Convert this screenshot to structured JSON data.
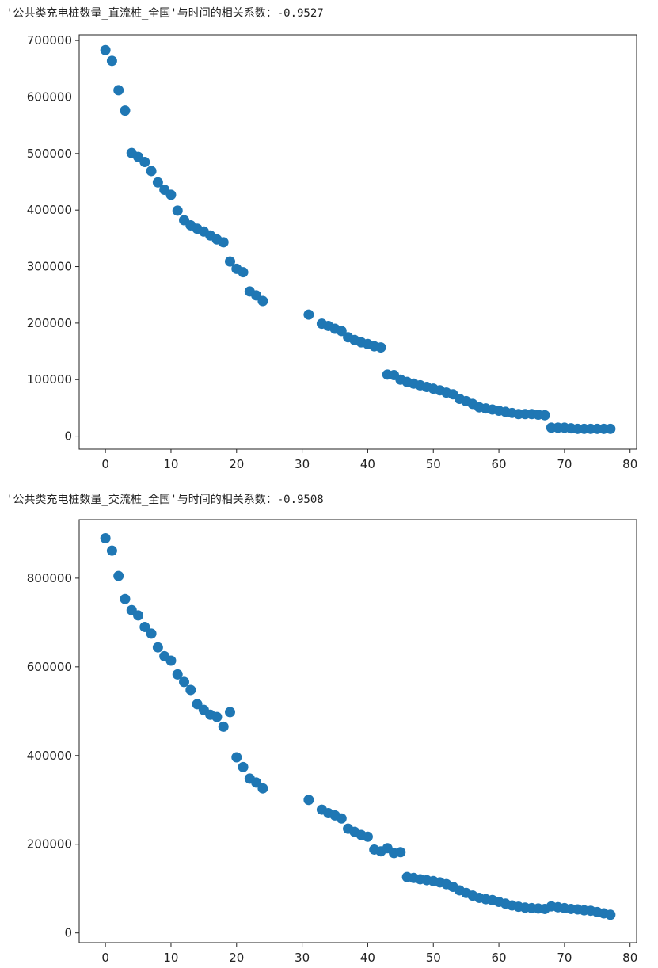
{
  "outputs": [
    {
      "text": "'公共类充电桩数量_直流桩_全国'与时间的相关系数：-0.9527"
    },
    {
      "text": "'公共类充电桩数量_交流桩_全国'与时间的相关系数：-0.9508"
    }
  ],
  "chart_data": [
    {
      "type": "scatter",
      "title": "",
      "xlabel": "",
      "ylabel": "",
      "xlim": [
        -4,
        81
      ],
      "ylim": [
        -23000,
        710000
      ],
      "xticks": [
        0,
        10,
        20,
        30,
        40,
        50,
        60,
        70,
        80
      ],
      "yticks": [
        0,
        100000,
        200000,
        300000,
        400000,
        500000,
        600000,
        700000
      ],
      "grid": false,
      "color": "#1f77b4",
      "series": [
        {
          "points": [
            [
              0,
              683000
            ],
            [
              1,
              664000
            ],
            [
              2,
              612000
            ],
            [
              3,
              576000
            ],
            [
              4,
              501000
            ],
            [
              5,
              494000
            ],
            [
              6,
              485000
            ],
            [
              7,
              469000
            ],
            [
              8,
              449000
            ],
            [
              9,
              436000
            ],
            [
              10,
              427000
            ],
            [
              11,
              399000
            ],
            [
              12,
              382000
            ],
            [
              13,
              373000
            ],
            [
              14,
              367000
            ],
            [
              15,
              362000
            ],
            [
              16,
              355000
            ],
            [
              17,
              348000
            ],
            [
              18,
              343000
            ],
            [
              19,
              309000
            ],
            [
              20,
              296000
            ],
            [
              21,
              290000
            ],
            [
              22,
              256000
            ],
            [
              23,
              249000
            ],
            [
              24,
              239000
            ],
            [
              31,
              215000
            ],
            [
              33,
              199000
            ],
            [
              34,
              195000
            ],
            [
              35,
              190000
            ],
            [
              36,
              186000
            ],
            [
              37,
              175000
            ],
            [
              38,
              170000
            ],
            [
              39,
              166000
            ],
            [
              40,
              163000
            ],
            [
              41,
              159000
            ],
            [
              42,
              157000
            ],
            [
              43,
              109000
            ],
            [
              44,
              108000
            ],
            [
              45,
              100000
            ],
            [
              46,
              96000
            ],
            [
              47,
              93000
            ],
            [
              48,
              90000
            ],
            [
              49,
              87000
            ],
            [
              50,
              84000
            ],
            [
              51,
              81000
            ],
            [
              52,
              77000
            ],
            [
              53,
              74000
            ],
            [
              54,
              66000
            ],
            [
              55,
              62000
            ],
            [
              56,
              57000
            ],
            [
              57,
              51000
            ],
            [
              58,
              49000
            ],
            [
              59,
              47000
            ],
            [
              60,
              45000
            ],
            [
              61,
              43000
            ],
            [
              62,
              41000
            ],
            [
              63,
              39000
            ],
            [
              64,
              39000
            ],
            [
              65,
              39000
            ],
            [
              66,
              38000
            ],
            [
              67,
              37000
            ],
            [
              68,
              15000
            ],
            [
              69,
              15000
            ],
            [
              70,
              15000
            ],
            [
              71,
              14000
            ],
            [
              72,
              13000
            ],
            [
              73,
              13000
            ],
            [
              74,
              13000
            ],
            [
              75,
              13000
            ],
            [
              76,
              13000
            ],
            [
              77,
              13000
            ]
          ]
        }
      ]
    },
    {
      "type": "scatter",
      "title": "",
      "xlabel": "",
      "ylabel": "",
      "xlim": [
        -4,
        81
      ],
      "ylim": [
        -22000,
        932000
      ],
      "xticks": [
        0,
        10,
        20,
        30,
        40,
        50,
        60,
        70,
        80
      ],
      "yticks": [
        0,
        200000,
        400000,
        600000,
        800000
      ],
      "grid": false,
      "color": "#1f77b4",
      "series": [
        {
          "points": [
            [
              0,
              890000
            ],
            [
              1,
              862000
            ],
            [
              2,
              805000
            ],
            [
              3,
              753000
            ],
            [
              4,
              728000
            ],
            [
              5,
              716000
            ],
            [
              6,
              690000
            ],
            [
              7,
              675000
            ],
            [
              8,
              644000
            ],
            [
              9,
              624000
            ],
            [
              10,
              614000
            ],
            [
              11,
              583000
            ],
            [
              12,
              566000
            ],
            [
              13,
              548000
            ],
            [
              14,
              516000
            ],
            [
              15,
              503000
            ],
            [
              16,
              492000
            ],
            [
              17,
              487000
            ],
            [
              18,
              465000
            ],
            [
              19,
              498000
            ],
            [
              20,
              396000
            ],
            [
              21,
              374000
            ],
            [
              22,
              348000
            ],
            [
              23,
              339000
            ],
            [
              24,
              326000
            ],
            [
              31,
              300000
            ],
            [
              33,
              278000
            ],
            [
              34,
              270000
            ],
            [
              35,
              265000
            ],
            [
              36,
              258000
            ],
            [
              37,
              235000
            ],
            [
              38,
              228000
            ],
            [
              39,
              221000
            ],
            [
              40,
              217000
            ],
            [
              41,
              188000
            ],
            [
              42,
              184000
            ],
            [
              43,
              191000
            ],
            [
              44,
              180000
            ],
            [
              45,
              182000
            ],
            [
              46,
              126000
            ],
            [
              47,
              124000
            ],
            [
              48,
              121000
            ],
            [
              49,
              119000
            ],
            [
              50,
              117000
            ],
            [
              51,
              114000
            ],
            [
              52,
              110000
            ],
            [
              53,
              104000
            ],
            [
              54,
              96000
            ],
            [
              55,
              90000
            ],
            [
              56,
              84000
            ],
            [
              57,
              79000
            ],
            [
              58,
              76000
            ],
            [
              59,
              74000
            ],
            [
              60,
              70000
            ],
            [
              61,
              66000
            ],
            [
              62,
              62000
            ],
            [
              63,
              59000
            ],
            [
              64,
              57000
            ],
            [
              65,
              56000
            ],
            [
              66,
              55000
            ],
            [
              67,
              54000
            ],
            [
              68,
              60000
            ],
            [
              69,
              58000
            ],
            [
              70,
              56000
            ],
            [
              71,
              54000
            ],
            [
              72,
              53000
            ],
            [
              73,
              51000
            ],
            [
              74,
              50000
            ],
            [
              75,
              47000
            ],
            [
              76,
              44000
            ],
            [
              77,
              41000
            ]
          ]
        }
      ]
    }
  ]
}
